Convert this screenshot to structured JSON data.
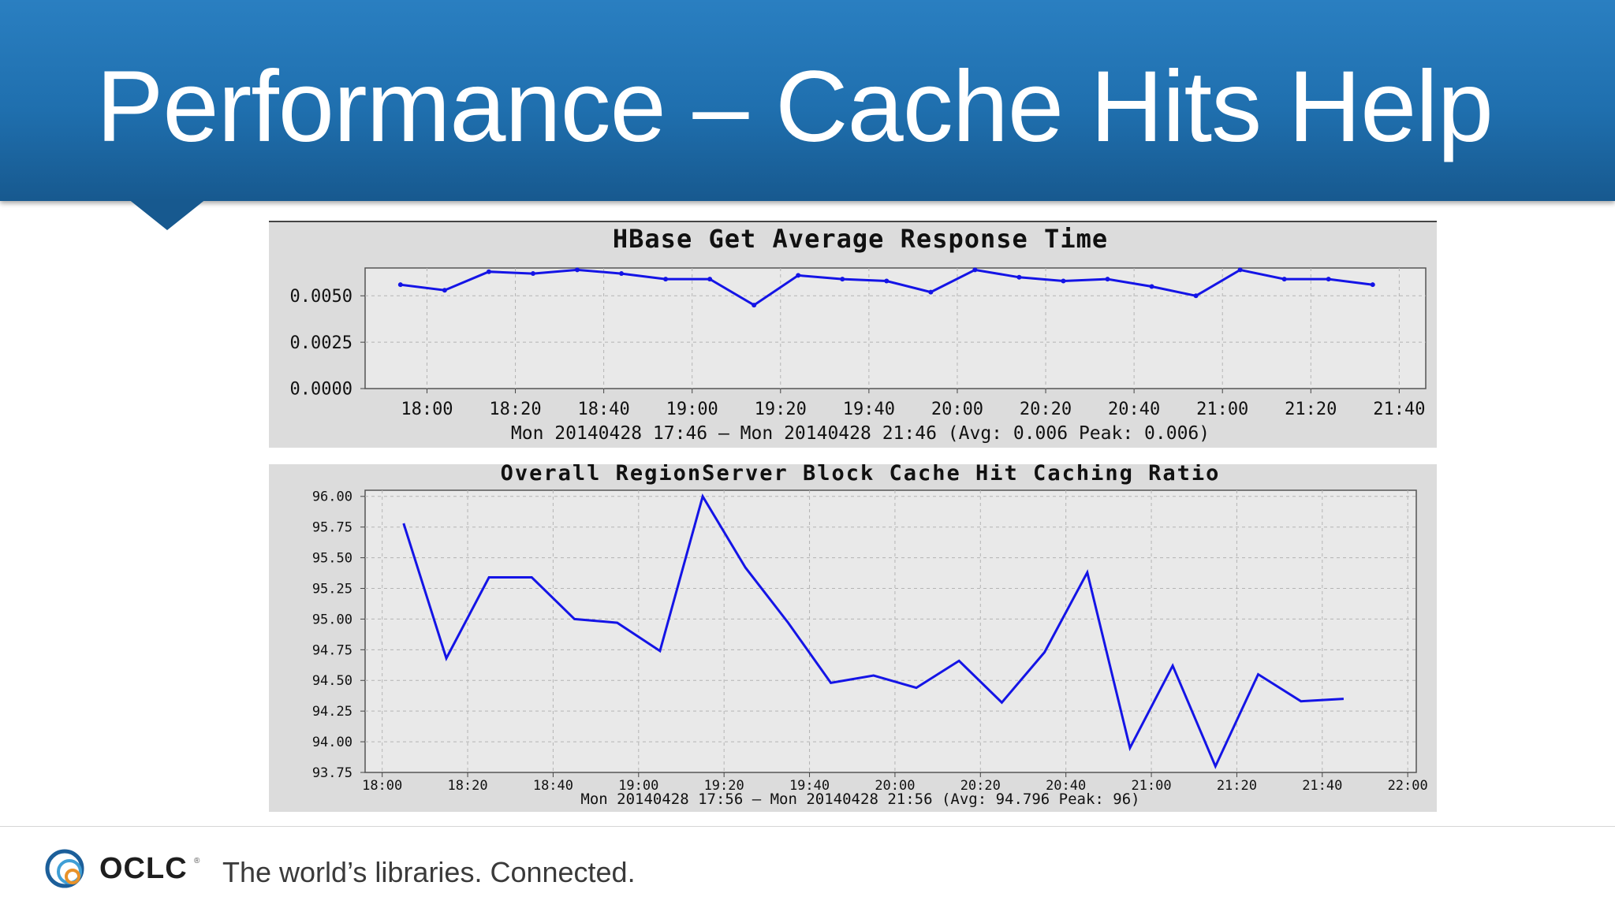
{
  "slide": {
    "title": "Performance – Cache Hits Help"
  },
  "footer": {
    "logo_text": "OCLC",
    "logo_mark": "®",
    "tagline": "The world’s libraries. Connected."
  },
  "colors": {
    "header_blue": "#1f6fae",
    "series_line": "#1414e6",
    "chart_background": "#dcdcdc"
  },
  "chart_data": [
    {
      "type": "line",
      "title": "HBase Get Average Response Time",
      "subtitle": "Mon 20140428 17:46 – Mon 20140428 21:46 (Avg: 0.006  Peak: 0.006)",
      "x_start_label": "17:46",
      "x_end_label": "21:46",
      "x_tick_labels": [
        "18:00",
        "18:20",
        "18:40",
        "19:00",
        "19:20",
        "19:40",
        "20:00",
        "20:20",
        "20:40",
        "21:00",
        "21:20",
        "21:40"
      ],
      "y_tick_labels": [
        "0.0000",
        "0.0025",
        "0.0050"
      ],
      "y_ticks": [
        0,
        0.0025,
        0.005
      ],
      "ylim": [
        0,
        0.0065
      ],
      "grid": true,
      "markers": true,
      "x": [
        "17:54",
        "18:04",
        "18:14",
        "18:24",
        "18:34",
        "18:44",
        "18:54",
        "19:04",
        "19:14",
        "19:24",
        "19:34",
        "19:44",
        "19:54",
        "20:04",
        "20:14",
        "20:24",
        "20:34",
        "20:44",
        "20:54",
        "21:04",
        "21:14",
        "21:24",
        "21:34"
      ],
      "values": [
        0.0056,
        0.0053,
        0.0063,
        0.0062,
        0.0064,
        0.0062,
        0.0059,
        0.0059,
        0.0045,
        0.0061,
        0.0059,
        0.0058,
        0.0052,
        0.0064,
        0.006,
        0.0058,
        0.0059,
        0.0055,
        0.005,
        0.0064,
        0.0059,
        0.0059,
        0.0056
      ]
    },
    {
      "type": "line",
      "title": "Overall RegionServer Block Cache Hit Caching Ratio",
      "subtitle": "Mon 20140428 17:56 – Mon 20140428 21:56 (Avg: 94.796  Peak: 96)",
      "x_start_label": "17:56",
      "x_end_label": "22:02",
      "x_tick_labels": [
        "18:00",
        "18:20",
        "18:40",
        "19:00",
        "19:20",
        "19:40",
        "20:00",
        "20:20",
        "20:40",
        "21:00",
        "21:20",
        "21:40",
        "22:00"
      ],
      "y_tick_labels": [
        "93.75",
        "94.00",
        "94.25",
        "94.50",
        "94.75",
        "95.00",
        "95.25",
        "95.50",
        "95.75",
        "96.00"
      ],
      "y_ticks": [
        93.75,
        94,
        94.25,
        94.5,
        94.75,
        95,
        95.25,
        95.5,
        95.75,
        96
      ],
      "ylim": [
        93.75,
        96.05
      ],
      "grid": true,
      "markers": false,
      "x": [
        "18:05",
        "18:15",
        "18:25",
        "18:35",
        "18:45",
        "18:55",
        "19:05",
        "19:15",
        "19:25",
        "19:35",
        "19:45",
        "19:55",
        "20:05",
        "20:15",
        "20:25",
        "20:35",
        "20:45",
        "20:55",
        "21:05",
        "21:15",
        "21:25",
        "21:35",
        "21:45"
      ],
      "values": [
        95.78,
        94.68,
        95.34,
        95.34,
        95.0,
        94.97,
        94.74,
        96.0,
        95.42,
        94.97,
        94.48,
        94.54,
        94.44,
        94.66,
        94.32,
        94.73,
        95.38,
        93.95,
        94.62,
        93.8,
        94.55,
        94.33,
        94.35
      ]
    }
  ]
}
